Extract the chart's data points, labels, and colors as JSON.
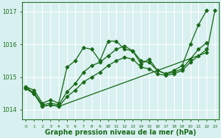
{
  "background_color": "#d8f0f0",
  "grid_color": "#b0d8d8",
  "line_color": "#1a6b1a",
  "xlabel": "Graphe pression niveau de la mer (hPa)",
  "xlabel_fontsize": 7,
  "ylim": [
    1013.7,
    1017.3
  ],
  "xlim": [
    -0.5,
    23.5
  ],
  "yticks": [
    1014,
    1015,
    1016,
    1017
  ],
  "xticks": [
    0,
    1,
    2,
    3,
    4,
    5,
    6,
    7,
    8,
    9,
    10,
    11,
    12,
    13,
    14,
    15,
    16,
    17,
    18,
    19,
    20,
    21,
    22,
    23
  ],
  "series": [
    {
      "x": [
        0,
        1,
        2,
        3,
        4,
        5,
        6,
        7,
        8,
        9,
        10,
        11,
        12,
        13,
        14,
        15,
        16,
        17,
        18,
        19,
        20,
        21,
        22,
        23
      ],
      "y": [
        1014.7,
        1014.6,
        1014.2,
        1014.3,
        1014.2,
        1015.3,
        1015.5,
        1015.9,
        1015.85,
        1015.5,
        1016.1,
        1016.1,
        1015.85,
        1015.8,
        1015.4,
        1015.55,
        1015.2,
        1015.1,
        1015.2,
        1015.35,
        1016.0,
        1016.6,
        1017.05,
        null
      ]
    },
    {
      "x": [
        0,
        1,
        2,
        3,
        4,
        5,
        6,
        7,
        8,
        9,
        10,
        11,
        12,
        13,
        14,
        15,
        16,
        17,
        18,
        19,
        20,
        21,
        22,
        23
      ],
      "y": [
        1014.7,
        1014.5,
        1014.15,
        1014.2,
        1014.15,
        1014.55,
        1014.8,
        1015.15,
        1015.35,
        1015.45,
        1015.65,
        1015.85,
        1015.95,
        1015.8,
        1015.5,
        1015.45,
        1015.2,
        1015.1,
        1015.15,
        1015.25,
        1015.55,
        1015.85,
        1016.05,
        null
      ]
    },
    {
      "x": [
        0,
        1,
        2,
        3,
        4,
        5,
        6,
        7,
        8,
        9,
        10,
        11,
        12,
        13,
        14,
        15,
        16,
        17,
        18,
        19,
        20,
        21,
        22,
        23
      ],
      "y": [
        1014.65,
        1014.5,
        1014.1,
        1014.15,
        1014.1,
        1014.4,
        1014.6,
        1014.85,
        1015.0,
        1015.15,
        1015.35,
        1015.5,
        1015.6,
        1015.55,
        1015.3,
        1015.25,
        1015.1,
        1015.05,
        1015.1,
        1015.2,
        1015.45,
        1015.65,
        1015.85,
        null
      ]
    },
    {
      "x": [
        0,
        1,
        2,
        3,
        4,
        22,
        23
      ],
      "y": [
        1014.65,
        1014.48,
        1014.1,
        1014.15,
        1014.1,
        1015.75,
        1017.05
      ]
    }
  ],
  "marker": "D",
  "marker_size": 2.5,
  "linewidth": 1.0
}
